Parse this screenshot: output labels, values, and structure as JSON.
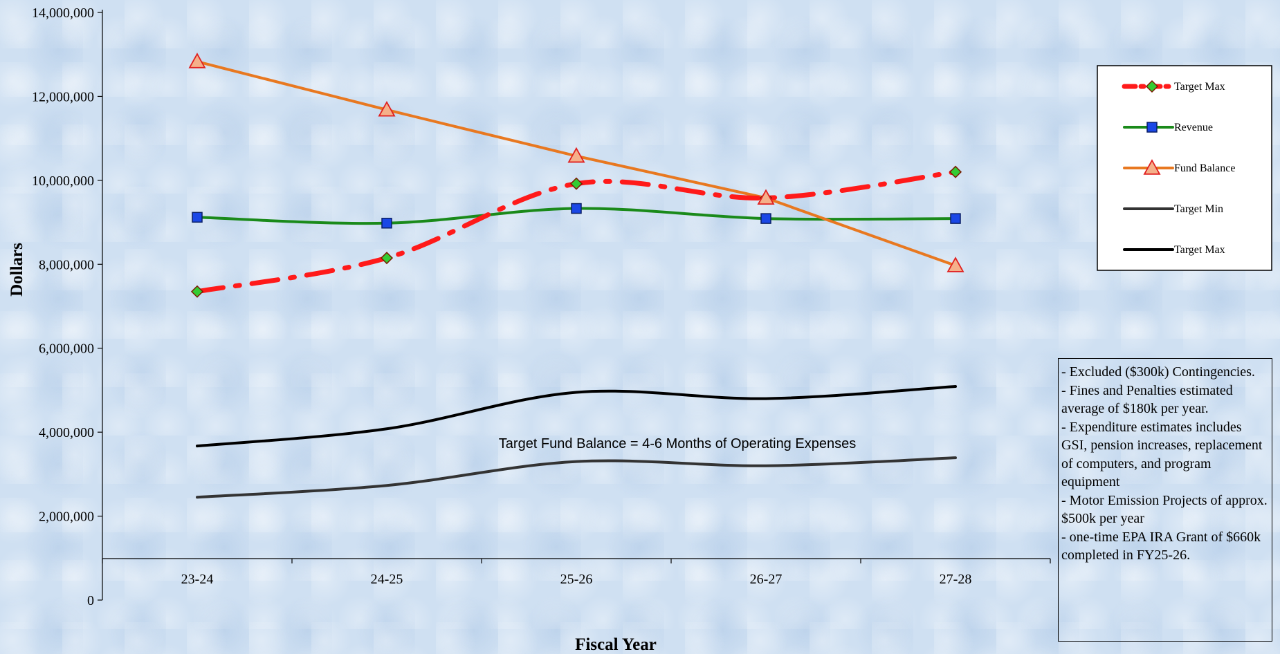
{
  "chart_data": {
    "type": "line",
    "xlabel": "Fiscal Year",
    "ylabel": "Dollars",
    "categories": [
      "23-24",
      "24-25",
      "25-26",
      "26-27",
      "27-28"
    ],
    "ylim": [
      0,
      14000000
    ],
    "yticks": [
      0,
      2000000,
      4000000,
      6000000,
      8000000,
      10000000,
      12000000,
      14000000
    ],
    "ytick_labels": [
      "0",
      "2,000,000",
      "4,000,000",
      "6,000,000",
      "8,000,000",
      "10,000,000",
      "12,000,000",
      "14,000,000"
    ],
    "series": [
      {
        "name": "Target Max",
        "values": [
          7350000,
          8150000,
          9920000,
          9580000,
          10200000
        ],
        "color": "#ff1a1a",
        "marker": "diamond",
        "marker_color": "#33cc33",
        "style": "dash-dot",
        "smooth": true
      },
      {
        "name": "Revenue",
        "values": [
          9120000,
          8980000,
          9330000,
          9090000,
          9090000
        ],
        "color": "#1a8a1a",
        "marker": "square",
        "marker_color": "#1a47e6",
        "style": "solid",
        "smooth": true
      },
      {
        "name": "Fund Balance",
        "values": [
          12830000,
          11680000,
          10580000,
          9580000,
          7970000
        ],
        "color": "#e87820",
        "marker": "triangle",
        "marker_color": "#f5b08a",
        "style": "solid",
        "smooth": false
      },
      {
        "name": "Target Min",
        "values": [
          2450000,
          2730000,
          3300000,
          3200000,
          3390000
        ],
        "color": "#333333",
        "marker": "none",
        "style": "solid",
        "smooth": true
      },
      {
        "name": "Target Max",
        "values": [
          3670000,
          4080000,
          4950000,
          4800000,
          5090000
        ],
        "color": "#000000",
        "marker": "none",
        "style": "solid",
        "smooth": true
      }
    ],
    "annotation": "Target Fund Balance = 4-6 Months of Operating Expenses",
    "legend_position": "right",
    "grid": false
  },
  "notes": [
    "- Excluded ($300k) Contingencies.",
    "- Fines and Penalties estimated average of  $180k per year.",
    "- Expenditure estimates includes GSI, pension increases, replacement of computers, and program equipment",
    "- Motor Emission Projects of approx. $500k per year",
    "- one-time EPA IRA Grant of $660k completed in FY25-26."
  ]
}
